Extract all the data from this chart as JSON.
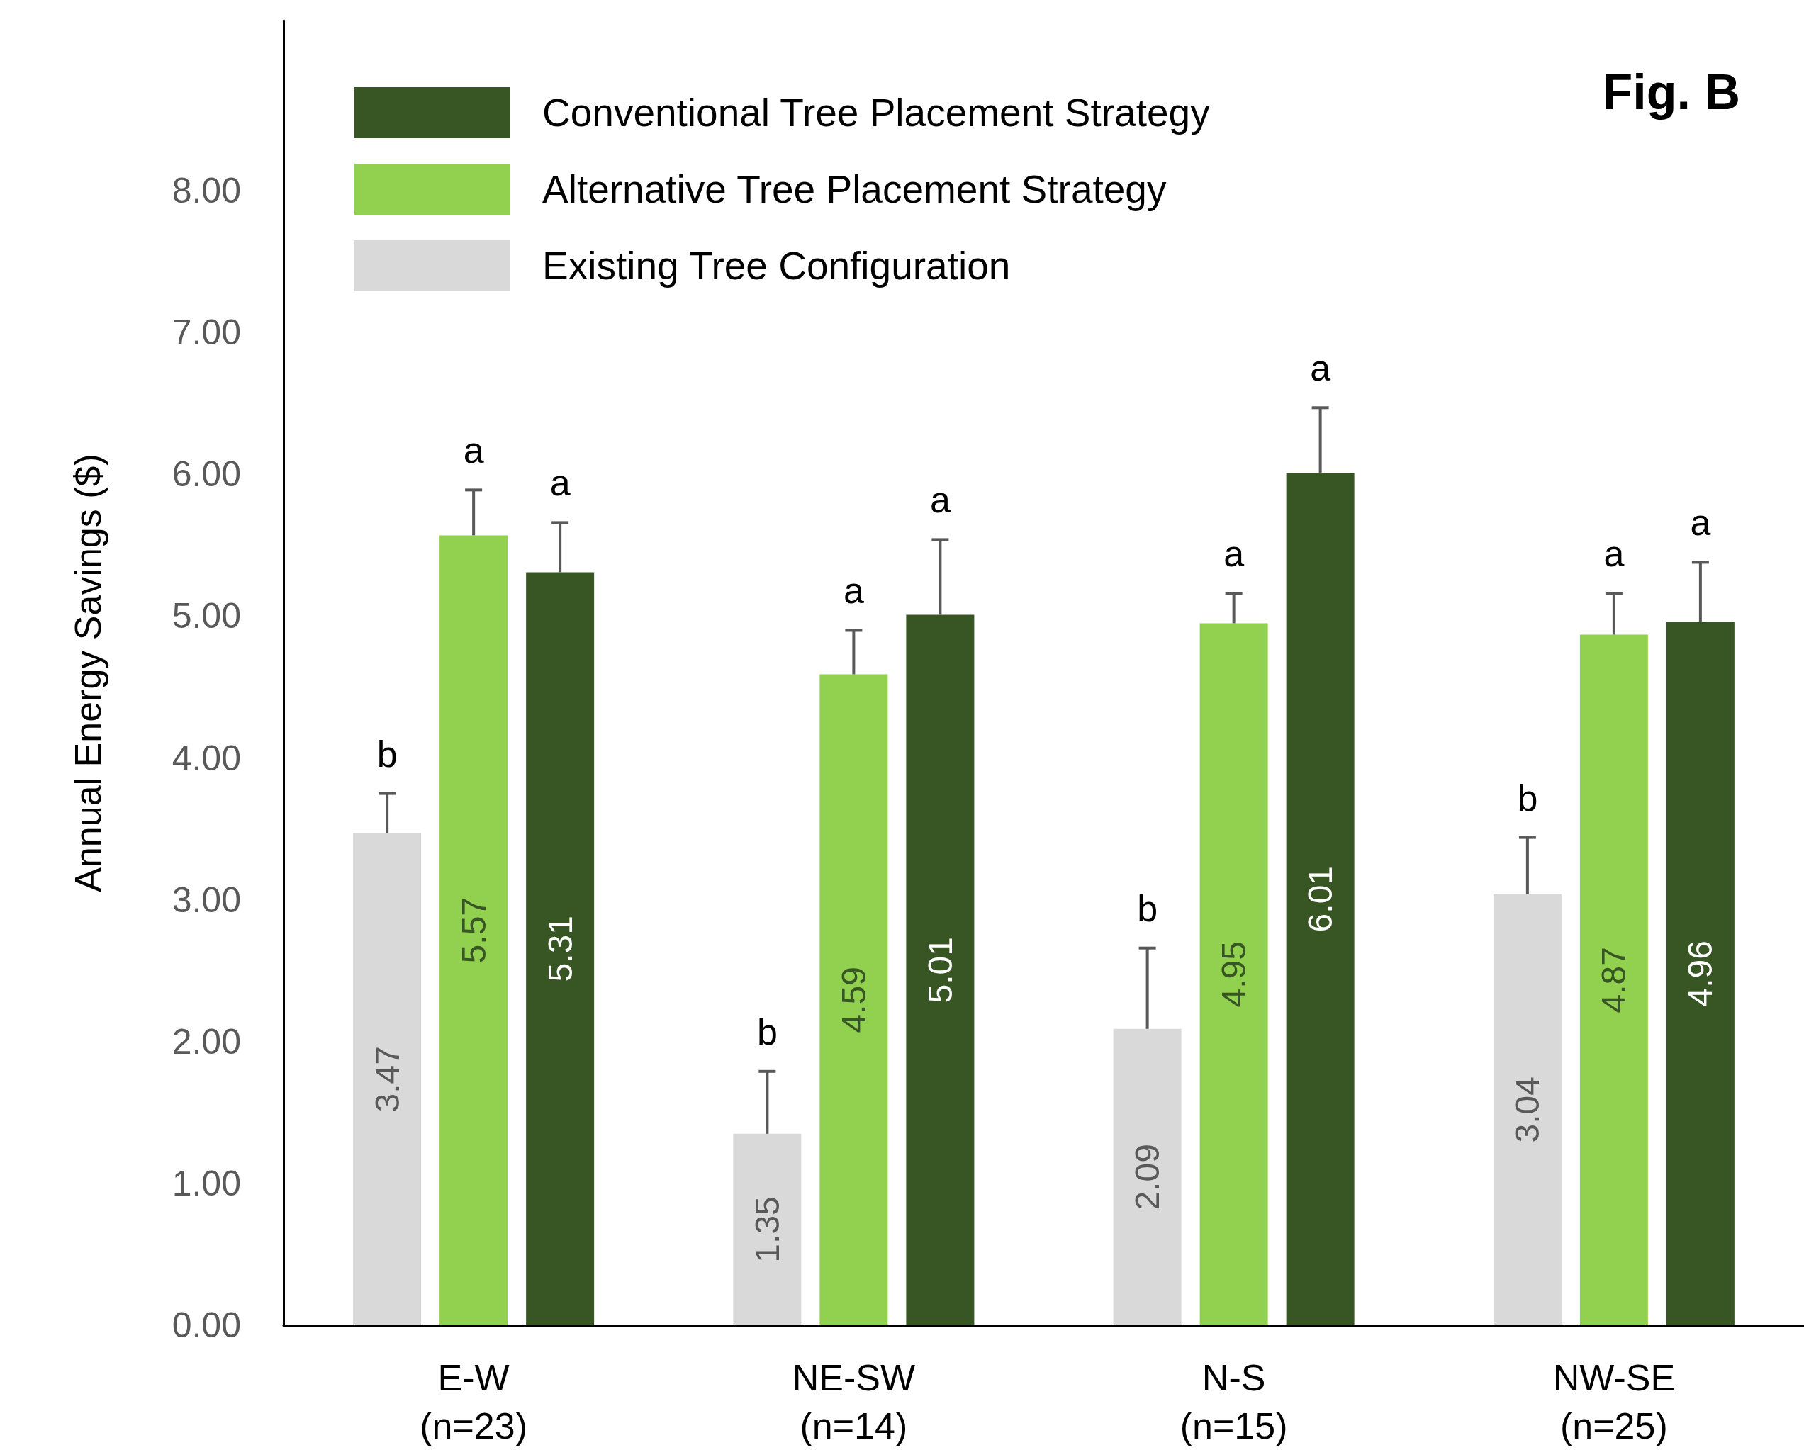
{
  "chart_data": {
    "type": "bar",
    "categories": [
      "E-W\n(n=23)",
      "NE-SW\n(n=14)",
      "N-S\n(n=15)",
      "NW-SE\n(n=25)"
    ],
    "series": [
      {
        "name": "Existing Tree Configuration",
        "color": "#d9d9d9",
        "values": [
          3.47,
          1.35,
          2.09,
          3.04
        ],
        "errors": [
          [
            3.47,
            3.75
          ],
          [
            1.35,
            1.79
          ],
          [
            2.09,
            2.66
          ],
          [
            3.04,
            3.44
          ]
        ]
      },
      {
        "name": "Alternative Tree Placement Strategy",
        "color": "#92d050",
        "values": [
          5.57,
          4.59,
          4.95,
          4.87
        ],
        "errors": [
          [
            5.57,
            5.89
          ],
          [
            4.59,
            4.9
          ],
          [
            4.95,
            5.16
          ],
          [
            4.87,
            5.16
          ]
        ]
      },
      {
        "name": "Conventional Tree Placement Strategy",
        "color": "#375623",
        "values": [
          5.31,
          5.01,
          6.01,
          4.96
        ],
        "errors": [
          [
            5.31,
            5.66
          ],
          [
            5.01,
            5.54
          ],
          [
            6.01,
            6.47
          ],
          [
            4.96,
            5.38
          ]
        ]
      }
    ],
    "ylabel": "Annual Energy Savings ($)",
    "ylim": [
      0,
      9.2
    ],
    "yticks": [
      {
        "value": 0,
        "label": "0.00"
      },
      {
        "value": 1,
        "label": "1.00"
      },
      {
        "value": 2,
        "label": "2.00"
      },
      {
        "value": 3,
        "label": "3.00"
      },
      {
        "value": 4,
        "label": "4.00"
      },
      {
        "value": 5,
        "label": "5.00"
      },
      {
        "value": 6,
        "label": "6.00"
      },
      {
        "value": 7,
        "label": "7.00"
      },
      {
        "value": 8,
        "label": "8.00"
      }
    ],
    "data_labels": true,
    "grid": false,
    "legend": "top left",
    "annotations": [
      "Fig. B",
      "b",
      "a",
      "a",
      "b",
      "a",
      "a",
      "b",
      "a",
      "a",
      "b",
      "a",
      "a"
    ]
  }
}
